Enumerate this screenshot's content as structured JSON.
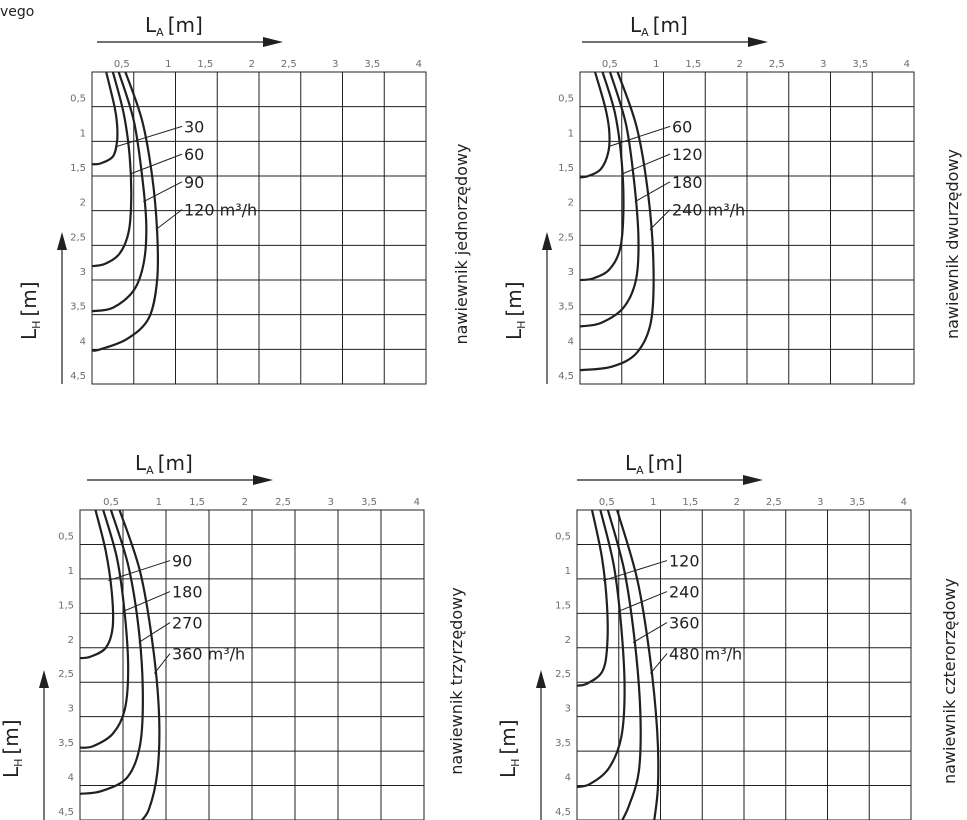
{
  "page": {
    "corner_text": "vego"
  },
  "chart_data": [
    {
      "type": "line",
      "side_label": "nawiewnik jednorzędowy",
      "xlabel": {
        "main": "L",
        "sub": "A",
        "unit": "[m]"
      },
      "ylabel": {
        "main": "L",
        "sub": "H",
        "unit": "[m]"
      },
      "xlim": [
        0,
        4
      ],
      "ylim": [
        0,
        4.5
      ],
      "x_ticks": [
        "0,5",
        "1",
        "1,5",
        "2",
        "2,5",
        "3",
        "3,5",
        "4"
      ],
      "y_ticks": [
        "0,5",
        "1",
        "1,5",
        "2",
        "2,5",
        "3",
        "3,5",
        "4",
        "4,5"
      ],
      "series": [
        {
          "name": "30",
          "label_y": 0.9,
          "points": [
            [
              0.17,
              0
            ],
            [
              0.27,
              0.5
            ],
            [
              0.3,
              0.75
            ],
            [
              0.3,
              1.0
            ],
            [
              0.25,
              1.22
            ],
            [
              0.1,
              1.32
            ],
            [
              0.0,
              1.33
            ]
          ]
        },
        {
          "name": "60",
          "label_y": 1.3,
          "points": [
            [
              0.25,
              0
            ],
            [
              0.38,
              0.6
            ],
            [
              0.45,
              1.2
            ],
            [
              0.47,
              1.8
            ],
            [
              0.44,
              2.3
            ],
            [
              0.33,
              2.62
            ],
            [
              0.15,
              2.77
            ],
            [
              0.0,
              2.8
            ]
          ]
        },
        {
          "name": "90",
          "label_y": 1.7,
          "points": [
            [
              0.32,
              0
            ],
            [
              0.5,
              0.7
            ],
            [
              0.6,
              1.5
            ],
            [
              0.65,
              2.2
            ],
            [
              0.62,
              2.75
            ],
            [
              0.5,
              3.15
            ],
            [
              0.25,
              3.4
            ],
            [
              0.0,
              3.45
            ]
          ]
        },
        {
          "name": "120 m³/h",
          "label_y": 2.1,
          "points": [
            [
              0.4,
              0
            ],
            [
              0.6,
              0.7
            ],
            [
              0.72,
              1.5
            ],
            [
              0.78,
              2.3
            ],
            [
              0.78,
              3.0
            ],
            [
              0.68,
              3.55
            ],
            [
              0.42,
              3.85
            ],
            [
              0.1,
              4.0
            ],
            [
              0.0,
              4.02
            ]
          ]
        }
      ]
    },
    {
      "type": "line",
      "side_label": "nawiewnik dwurzędowy",
      "xlabel": {
        "main": "L",
        "sub": "A",
        "unit": "[m]"
      },
      "ylabel": {
        "main": "L",
        "sub": "H",
        "unit": "[m]"
      },
      "xlim": [
        0,
        4
      ],
      "ylim": [
        0,
        4.5
      ],
      "x_ticks": [
        "0,5",
        "1",
        "1,5",
        "2",
        "2,5",
        "3",
        "3,5",
        "4"
      ],
      "y_ticks": [
        "0,5",
        "1",
        "1,5",
        "2",
        "2,5",
        "3",
        "3,5",
        "4",
        "4,5"
      ],
      "series": [
        {
          "name": "60",
          "label_y": 0.9,
          "points": [
            [
              0.18,
              0
            ],
            [
              0.3,
              0.5
            ],
            [
              0.35,
              0.85
            ],
            [
              0.34,
              1.15
            ],
            [
              0.25,
              1.4
            ],
            [
              0.1,
              1.5
            ],
            [
              0.0,
              1.52
            ]
          ]
        },
        {
          "name": "120",
          "label_y": 1.3,
          "points": [
            [
              0.27,
              0
            ],
            [
              0.42,
              0.6
            ],
            [
              0.5,
              1.3
            ],
            [
              0.52,
              2.0
            ],
            [
              0.48,
              2.55
            ],
            [
              0.35,
              2.85
            ],
            [
              0.15,
              2.98
            ],
            [
              0.0,
              3.0
            ]
          ]
        },
        {
          "name": "180",
          "label_y": 1.7,
          "points": [
            [
              0.36,
              0
            ],
            [
              0.55,
              0.75
            ],
            [
              0.65,
              1.6
            ],
            [
              0.7,
              2.4
            ],
            [
              0.67,
              3.0
            ],
            [
              0.52,
              3.4
            ],
            [
              0.25,
              3.62
            ],
            [
              0.0,
              3.67
            ]
          ]
        },
        {
          "name": "240 m³/h",
          "label_y": 2.1,
          "points": [
            [
              0.45,
              0
            ],
            [
              0.68,
              0.8
            ],
            [
              0.82,
              1.8
            ],
            [
              0.88,
              2.8
            ],
            [
              0.85,
              3.6
            ],
            [
              0.68,
              4.05
            ],
            [
              0.38,
              4.25
            ],
            [
              0.0,
              4.3
            ]
          ]
        }
      ]
    },
    {
      "type": "line",
      "side_label": "nawiewnik trzyrzędowy",
      "xlabel": {
        "main": "L",
        "sub": "A",
        "unit": "[m]"
      },
      "ylabel": {
        "main": "L",
        "sub": "H",
        "unit": "[m]"
      },
      "xlim": [
        0,
        4
      ],
      "ylim": [
        0,
        4.5
      ],
      "x_ticks": [
        "0,5",
        "1",
        "1,5",
        "2",
        "2,5",
        "3",
        "3,5",
        "4"
      ],
      "y_ticks": [
        "0,5",
        "1",
        "1,5",
        "2",
        "2,5",
        "3",
        "3,5",
        "4",
        "4,5"
      ],
      "series": [
        {
          "name": "90",
          "label_y": 0.85,
          "points": [
            [
              0.18,
              0
            ],
            [
              0.3,
              0.6
            ],
            [
              0.37,
              1.2
            ],
            [
              0.38,
              1.7
            ],
            [
              0.3,
              2.0
            ],
            [
              0.12,
              2.13
            ],
            [
              0.0,
              2.15
            ]
          ]
        },
        {
          "name": "180",
          "label_y": 1.3,
          "points": [
            [
              0.27,
              0
            ],
            [
              0.43,
              0.7
            ],
            [
              0.52,
              1.5
            ],
            [
              0.56,
              2.3
            ],
            [
              0.52,
              2.9
            ],
            [
              0.38,
              3.25
            ],
            [
              0.15,
              3.43
            ],
            [
              0.0,
              3.45
            ]
          ]
        },
        {
          "name": "270",
          "label_y": 1.75,
          "points": [
            [
              0.36,
              0
            ],
            [
              0.56,
              0.8
            ],
            [
              0.68,
              1.7
            ],
            [
              0.73,
              2.6
            ],
            [
              0.7,
              3.4
            ],
            [
              0.55,
              3.88
            ],
            [
              0.25,
              4.08
            ],
            [
              0.0,
              4.12
            ]
          ]
        },
        {
          "name": "360 m³/h",
          "label_y": 2.2,
          "points": [
            [
              0.46,
              0
            ],
            [
              0.7,
              0.9
            ],
            [
              0.85,
              2.0
            ],
            [
              0.92,
              3.0
            ],
            [
              0.9,
              3.8
            ],
            [
              0.8,
              4.35
            ],
            [
              0.68,
              4.55
            ]
          ]
        }
      ]
    },
    {
      "type": "line",
      "side_label": "nawiewnik czterorzędowy",
      "xlabel": {
        "main": "L",
        "sub": "A",
        "unit": "[m]"
      },
      "ylabel": {
        "main": "L",
        "sub": "H",
        "unit": "[m]"
      },
      "xlim": [
        0,
        4
      ],
      "ylim": [
        0,
        4.5
      ],
      "x_ticks": [
        "0,5",
        "1",
        "1,5",
        "2",
        "2,5",
        "3",
        "3,5",
        "4"
      ],
      "y_ticks": [
        "0,5",
        "1",
        "1,5",
        "2",
        "2,5",
        "3",
        "3,5",
        "4",
        "4,5"
      ],
      "series": [
        {
          "name": "120",
          "label_y": 0.85,
          "points": [
            [
              0.18,
              0
            ],
            [
              0.3,
              0.7
            ],
            [
              0.36,
              1.4
            ],
            [
              0.36,
              2.0
            ],
            [
              0.3,
              2.35
            ],
            [
              0.12,
              2.52
            ],
            [
              0.0,
              2.55
            ]
          ]
        },
        {
          "name": "240",
          "label_y": 1.3,
          "points": [
            [
              0.28,
              0
            ],
            [
              0.44,
              0.8
            ],
            [
              0.53,
              1.7
            ],
            [
              0.57,
              2.6
            ],
            [
              0.53,
              3.3
            ],
            [
              0.38,
              3.75
            ],
            [
              0.15,
              3.98
            ],
            [
              0.0,
              4.02
            ]
          ]
        },
        {
          "name": "360",
          "label_y": 1.75,
          "points": [
            [
              0.37,
              0
            ],
            [
              0.57,
              0.9
            ],
            [
              0.7,
              2.0
            ],
            [
              0.76,
              3.0
            ],
            [
              0.74,
              3.8
            ],
            [
              0.62,
              4.3
            ],
            [
              0.52,
              4.55
            ]
          ]
        },
        {
          "name": "480 m³/h",
          "label_y": 2.2,
          "points": [
            [
              0.48,
              0
            ],
            [
              0.72,
              1.0
            ],
            [
              0.87,
              2.1
            ],
            [
              0.96,
              3.2
            ],
            [
              0.97,
              4.0
            ],
            [
              0.92,
              4.55
            ]
          ]
        }
      ]
    }
  ]
}
